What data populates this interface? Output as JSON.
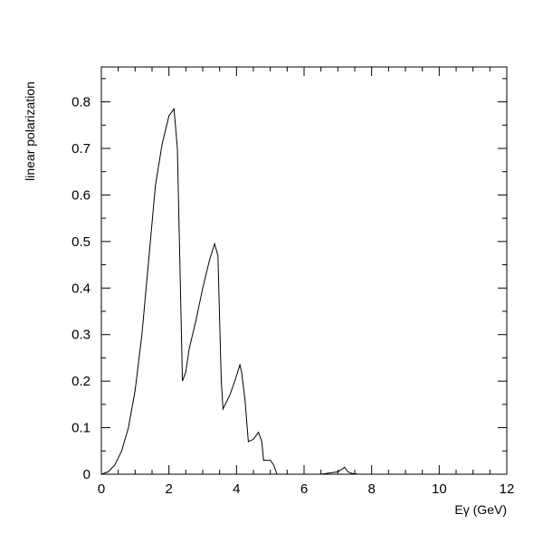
{
  "chart_data": {
    "type": "line",
    "title": "",
    "xlabel": "Eγ (GeV)",
    "ylabel": "linear polarization",
    "xlim": [
      0,
      12
    ],
    "ylim": [
      0,
      0.875
    ],
    "grid": false,
    "legend": "none",
    "x_ticks": [
      0,
      2,
      4,
      6,
      8,
      10,
      12
    ],
    "y_ticks": [
      0,
      0.1,
      0.2,
      0.3,
      0.4,
      0.5,
      0.6,
      0.7,
      0.8
    ],
    "x_tick_labels": [
      "0",
      "2",
      "4",
      "6",
      "8",
      "10",
      "12"
    ],
    "y_tick_labels": [
      "0",
      "0.1",
      "0.2",
      "0.3",
      "0.4",
      "0.5",
      "0.6",
      "0.7",
      "0.8"
    ],
    "series": [
      {
        "x": [
          0,
          0.2,
          0.4,
          0.6,
          0.8,
          1.0,
          1.2,
          1.4,
          1.6,
          1.8,
          2.0,
          2.15,
          2.25,
          2.4,
          2.5,
          2.6,
          2.8,
          3.0,
          3.2,
          3.35,
          3.45,
          3.55,
          3.6,
          3.8,
          3.95,
          4.1,
          4.15,
          4.25,
          4.35,
          4.5,
          4.65,
          4.75,
          4.8,
          4.9,
          5.0,
          5.1,
          5.2,
          5.5,
          6.0,
          6.5,
          7.0,
          7.1,
          7.2,
          7.3,
          7.4,
          7.6
        ],
        "values": [
          0.0,
          0.005,
          0.02,
          0.05,
          0.1,
          0.18,
          0.3,
          0.46,
          0.62,
          0.71,
          0.77,
          0.785,
          0.7,
          0.2,
          0.22,
          0.27,
          0.33,
          0.4,
          0.46,
          0.495,
          0.47,
          0.2,
          0.14,
          0.17,
          0.2,
          0.235,
          0.22,
          0.16,
          0.07,
          0.075,
          0.09,
          0.07,
          0.03,
          0.03,
          0.03,
          0.02,
          0.0,
          0.0,
          0.0,
          0.0,
          0.005,
          0.01,
          0.015,
          0.005,
          0.002,
          0.0
        ]
      }
    ],
    "colors": {
      "line": "#000000",
      "frame": "#000000"
    }
  }
}
